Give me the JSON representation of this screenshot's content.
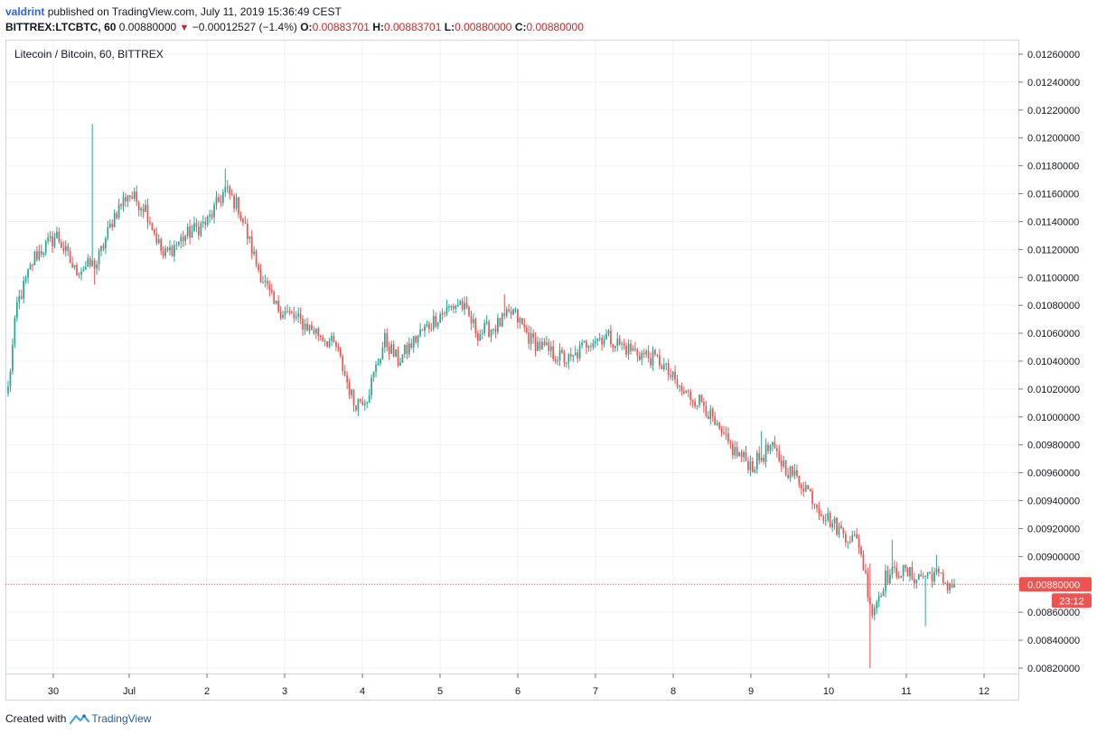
{
  "header": {
    "author": "valdrint",
    "published_text": "published on TradingView.com, July 11, 2019 15:36:49 CEST"
  },
  "ohlc_line": {
    "symbol": "BITTREX:LTCBTC, 60",
    "last": "0.00880000",
    "change": "−0.00012527 (−1.4%)",
    "o_label": "O:",
    "o_value": "0.00883701",
    "h_label": "H:",
    "h_value": "0.00883701",
    "l_label": "L:",
    "l_value": "0.00880000",
    "c_label": "C:",
    "c_value": "0.00880000"
  },
  "footer": {
    "created_with": "Created with",
    "brand": "TradingView"
  },
  "colors": {
    "up": "#26a69a",
    "down": "#ef5350",
    "grid": "#eef2f7",
    "price_line": "#ef5350",
    "price_tag_bg": "#ef5350"
  },
  "chart_data": {
    "type": "candlestick",
    "title": "Litecoin / Bitcoin, 60, BITTREX",
    "ylim": [
      0.0081,
      0.0127
    ],
    "y_ticks": [
      "0.01260000",
      "0.01240000",
      "0.01220000",
      "0.01200000",
      "0.01180000",
      "0.01160000",
      "0.01140000",
      "0.01120000",
      "0.01100000",
      "0.01080000",
      "0.01060000",
      "0.01040000",
      "0.01020000",
      "0.01000000",
      "0.00980000",
      "0.00960000",
      "0.00940000",
      "0.00920000",
      "0.00900000",
      "0.00880000",
      "0.00860000",
      "0.00840000",
      "0.00820000"
    ],
    "x_ticks": [
      "30",
      "Jul",
      "2",
      "3",
      "4",
      "5",
      "6",
      "7",
      "8",
      "9",
      "10",
      "11",
      "12"
    ],
    "current_price": "0.00880000",
    "countdown": "23:12",
    "anchor_closes": [
      [
        0,
        0.0102
      ],
      [
        4,
        0.0108
      ],
      [
        12,
        0.01115
      ],
      [
        22,
        0.0113
      ],
      [
        30,
        0.01105
      ],
      [
        40,
        0.0111
      ],
      [
        48,
        0.01145
      ],
      [
        54,
        0.0116
      ],
      [
        62,
        0.0115
      ],
      [
        70,
        0.01115
      ],
      [
        80,
        0.0113
      ],
      [
        90,
        0.0114
      ],
      [
        98,
        0.01163
      ],
      [
        104,
        0.0115
      ],
      [
        112,
        0.0111
      ],
      [
        120,
        0.0108
      ],
      [
        130,
        0.0107
      ],
      [
        140,
        0.0106
      ],
      [
        148,
        0.0105
      ],
      [
        156,
        0.0101
      ],
      [
        162,
        0.01015
      ],
      [
        170,
        0.01055
      ],
      [
        176,
        0.0104
      ],
      [
        186,
        0.0106
      ],
      [
        196,
        0.01075
      ],
      [
        204,
        0.01082
      ],
      [
        212,
        0.0106
      ],
      [
        220,
        0.01065
      ],
      [
        228,
        0.01075
      ],
      [
        236,
        0.01055
      ],
      [
        246,
        0.01045
      ],
      [
        254,
        0.0104
      ],
      [
        262,
        0.01055
      ],
      [
        270,
        0.01058
      ],
      [
        278,
        0.0105
      ],
      [
        286,
        0.01045
      ],
      [
        294,
        0.0104
      ],
      [
        304,
        0.01018
      ],
      [
        314,
        0.0101
      ],
      [
        320,
        0.0099
      ],
      [
        328,
        0.00975
      ],
      [
        336,
        0.00965
      ],
      [
        344,
        0.00978
      ],
      [
        352,
        0.00962
      ],
      [
        360,
        0.0095
      ],
      [
        368,
        0.0093
      ],
      [
        376,
        0.00918
      ],
      [
        384,
        0.0091
      ],
      [
        390,
        0.0086
      ],
      [
        396,
        0.00885
      ],
      [
        402,
        0.0089
      ],
      [
        410,
        0.00885
      ],
      [
        418,
        0.00888
      ],
      [
        424,
        0.0088
      ]
    ],
    "spikes": [
      [
        38,
        "high",
        0.0121
      ],
      [
        39,
        "low",
        0.01095
      ],
      [
        98,
        "high",
        0.01178
      ],
      [
        160,
        "low",
        0.01008
      ],
      [
        224,
        "high",
        0.01088
      ],
      [
        340,
        "high",
        0.0099
      ],
      [
        389,
        "low",
        0.0082
      ],
      [
        389,
        "high",
        0.00895
      ],
      [
        414,
        "low",
        0.0085
      ],
      [
        399,
        "high",
        0.00912
      ],
      [
        419,
        "high",
        0.00901
      ]
    ],
    "candle_count": 428
  }
}
